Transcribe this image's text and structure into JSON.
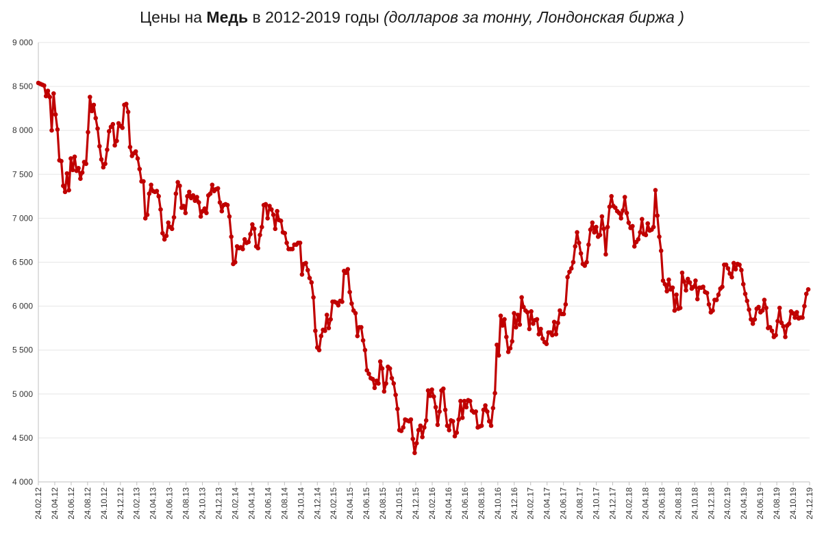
{
  "chart_data": {
    "type": "line",
    "title_parts": {
      "prefix": "Цены на ",
      "bold": "Медь",
      "middle": " в 2012-2019 годы ",
      "italic": "(долларов за тонну, Лондонская биржа )"
    },
    "xlabel": "",
    "ylabel": "",
    "ylim": [
      4000,
      9000
    ],
    "yticks": [
      4000,
      4500,
      5000,
      5500,
      6000,
      6500,
      7000,
      7500,
      8000,
      8500,
      9000
    ],
    "ytick_labels": [
      "4 000",
      "4 500",
      "5 000",
      "5 500",
      "6 000",
      "6 500",
      "7 000",
      "7 500",
      "8 000",
      "8 500",
      "9 000"
    ],
    "xticks": [
      "24.02.12",
      "24.04.12",
      "24.06.12",
      "24.08.12",
      "24.10.12",
      "24.12.12",
      "24.02.13",
      "24.04.13",
      "24.06.13",
      "24.08.13",
      "24.10.13",
      "24.12.13",
      "24.02.14",
      "24.04.14",
      "24.06.14",
      "24.08.14",
      "24.10.14",
      "24.12.14",
      "24.02.15",
      "24.04.15",
      "24.06.15",
      "24.08.15",
      "24.10.15",
      "24.12.15",
      "24.02.16",
      "24.04.16",
      "24.06.16",
      "24.08.16",
      "24.10.16",
      "24.12.16",
      "24.02.17",
      "24.04.17",
      "24.06.17",
      "24.08.17",
      "24.10.17",
      "24.12.17",
      "24.02.18",
      "24.04.18",
      "24.06.18",
      "24.08.18",
      "24.10.18",
      "24.12.18",
      "24.02.19",
      "24.04.19",
      "24.06.19",
      "24.08.19",
      "24.10.19",
      "24.12.19"
    ],
    "grid": true,
    "legend": "none",
    "series_color": "#c00000",
    "series": [
      {
        "values": [
          8540,
          8530,
          8520,
          8510,
          8390,
          8450,
          8380,
          8000,
          8420,
          8180,
          8010,
          7660,
          7650,
          7370,
          7300,
          7510,
          7320,
          7680,
          7550,
          7700,
          7540,
          7570,
          7450,
          7520,
          7640,
          7620,
          7980,
          8380,
          8220,
          8290,
          8140,
          8020,
          7820,
          7670,
          7580,
          7620,
          7780,
          7990,
          8040,
          8070,
          7830,
          7880,
          8080,
          8050,
          8030,
          8290,
          8300,
          8210,
          7810,
          7710,
          7740,
          7760,
          7680,
          7560,
          7420,
          7420,
          7000,
          7040,
          7280,
          7380,
          7310,
          7300,
          7310,
          7250,
          7100,
          6830,
          6760,
          6800,
          6950,
          6900,
          6880,
          7010,
          7280,
          7410,
          7370,
          7120,
          7140,
          7060,
          7250,
          7300,
          7230,
          7260,
          7200,
          7240,
          7180,
          7020,
          7080,
          7110,
          7060,
          7260,
          7280,
          7380,
          7310,
          7330,
          7340,
          7180,
          7080,
          7150,
          7160,
          7150,
          7020,
          6790,
          6480,
          6500,
          6680,
          6660,
          6670,
          6650,
          6760,
          6720,
          6730,
          6820,
          6930,
          6880,
          6680,
          6660,
          6810,
          6900,
          7150,
          7160,
          7000,
          7140,
          7100,
          7040,
          6880,
          7080,
          6980,
          6970,
          6840,
          6830,
          6720,
          6650,
          6650,
          6650,
          6700,
          6700,
          6720,
          6720,
          6360,
          6480,
          6490,
          6410,
          6320,
          6270,
          6100,
          5720,
          5530,
          5500,
          5660,
          5730,
          5720,
          5900,
          5750,
          5850,
          6050,
          6050,
          6040,
          6010,
          6060,
          6050,
          6400,
          6380,
          6420,
          6160,
          6030,
          5950,
          5920,
          5660,
          5760,
          5760,
          5610,
          5500,
          5270,
          5230,
          5180,
          5170,
          5070,
          5150,
          5120,
          5370,
          5290,
          5030,
          5120,
          5310,
          5290,
          5180,
          5120,
          4990,
          4830,
          4590,
          4580,
          4620,
          4710,
          4700,
          4690,
          4710,
          4490,
          4330,
          4440,
          4590,
          4640,
          4510,
          4620,
          4700,
          5040,
          4980,
          5050,
          4970,
          4850,
          4650,
          4800,
          5040,
          5060,
          4820,
          4640,
          4590,
          4700,
          4690,
          4520,
          4560,
          4710,
          4920,
          4730,
          4920,
          4850,
          4930,
          4920,
          4810,
          4790,
          4800,
          4620,
          4630,
          4640,
          4820,
          4870,
          4800,
          4690,
          4640,
          4840,
          5010,
          5560,
          5440,
          5890,
          5780,
          5850,
          5650,
          5480,
          5520,
          5600,
          5920,
          5760,
          5900,
          5790,
          6100,
          5990,
          5950,
          5930,
          5740,
          5940,
          5800,
          5840,
          5850,
          5680,
          5740,
          5630,
          5590,
          5570,
          5700,
          5700,
          5670,
          5820,
          5680,
          5810,
          5950,
          5910,
          5910,
          6020,
          6330,
          6390,
          6430,
          6500,
          6680,
          6840,
          6720,
          6600,
          6480,
          6460,
          6500,
          6700,
          6870,
          6950,
          6840,
          6900,
          6790,
          6810,
          7020,
          6880,
          6590,
          6900,
          7130,
          7250,
          7140,
          7120,
          7080,
          7060,
          7000,
          7090,
          7240,
          7060,
          6950,
          6890,
          6910,
          6680,
          6730,
          6760,
          6840,
          6990,
          6820,
          6810,
          6940,
          6860,
          6870,
          6900,
          7320,
          7030,
          6790,
          6630,
          6290,
          6250,
          6170,
          6300,
          6190,
          6210,
          5950,
          6130,
          5970,
          5980,
          6380,
          6280,
          6180,
          6310,
          6270,
          6200,
          6220,
          6290,
          6080,
          6210,
          6210,
          6220,
          6160,
          6150,
          6020,
          5930,
          5950,
          6070,
          6070,
          6130,
          6200,
          6220,
          6470,
          6470,
          6430,
          6370,
          6330,
          6490,
          6420,
          6480,
          6470,
          6410,
          6250,
          6140,
          6060,
          5960,
          5850,
          5800,
          5850,
          5970,
          5990,
          5930,
          5950,
          6070,
          5980,
          5750,
          5760,
          5720,
          5650,
          5670,
          5830,
          5980,
          5810,
          5770,
          5650,
          5780,
          5800,
          5940,
          5920,
          5870,
          5930,
          5860,
          5870,
          5870,
          6000,
          6140,
          6190
        ]
      }
    ]
  }
}
